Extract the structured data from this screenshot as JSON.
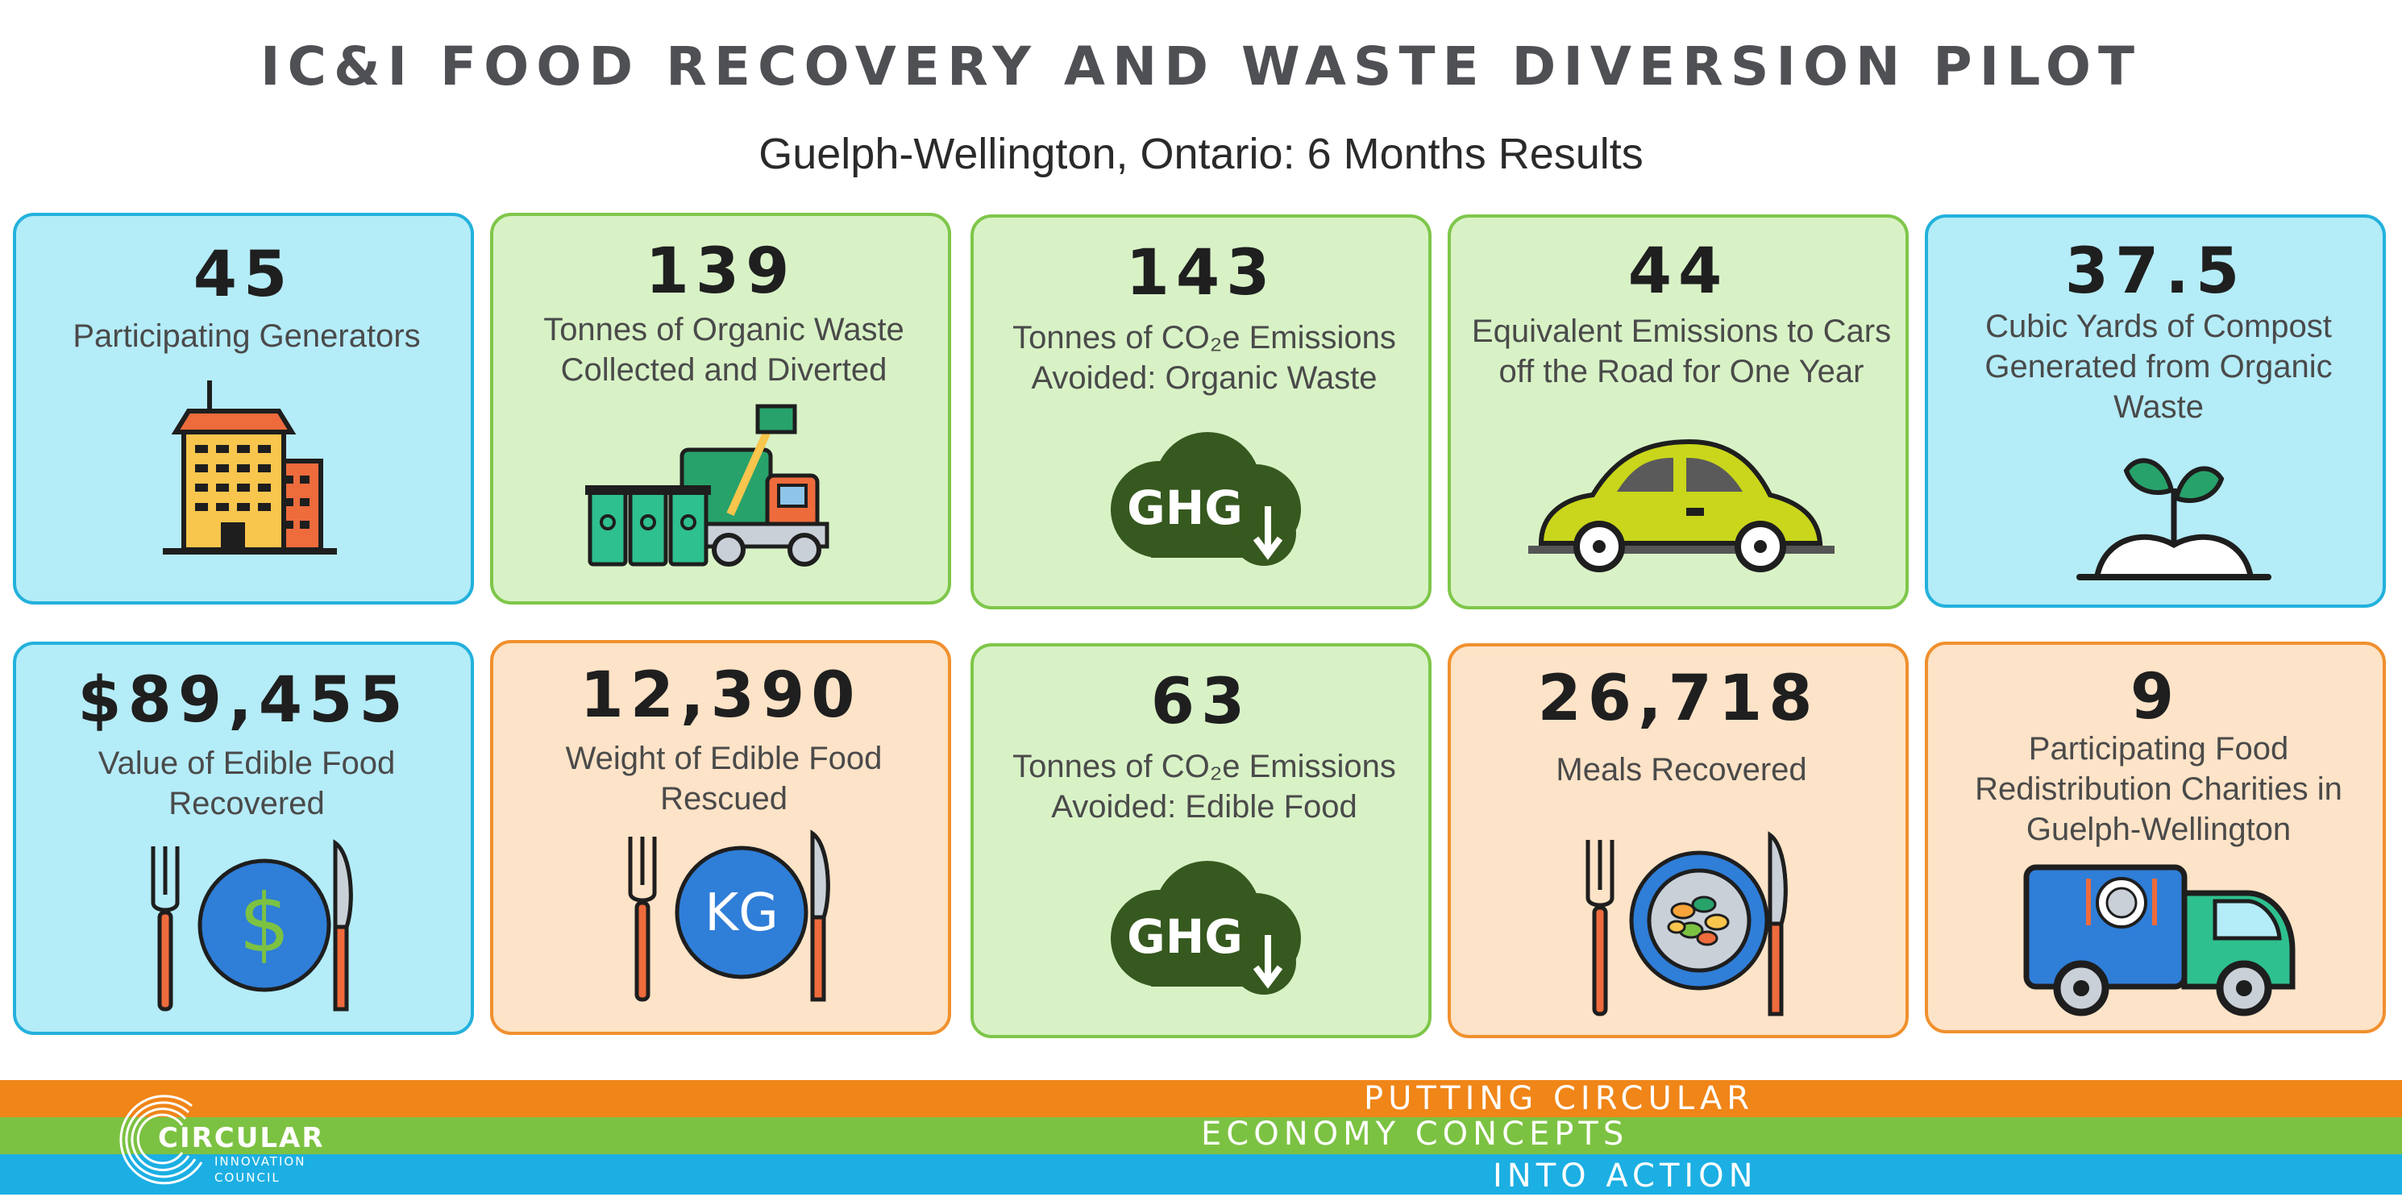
{
  "header": {
    "title": "IC&I FOOD RECOVERY AND WASTE DIVERSION PILOT",
    "subtitle": "Guelph-Wellington, Ontario: 6 Months Results"
  },
  "cards": [
    {
      "value": "45",
      "lines": [
        "Participating Generators"
      ],
      "icon": "building-icon",
      "color": "blue"
    },
    {
      "value": "139",
      "lines": [
        "Tonnes of Organic Waste",
        "Collected and Diverted"
      ],
      "icon": "garbage-truck-icon",
      "color": "green"
    },
    {
      "value": "143",
      "lines": [
        "Tonnes of CO₂e Emissions",
        "Avoided: Organic Waste"
      ],
      "icon": "ghg-cloud-icon",
      "color": "green"
    },
    {
      "value": "44",
      "lines": [
        "Equivalent Emissions to Cars",
        "off the Road for One Year"
      ],
      "icon": "car-icon",
      "color": "green"
    },
    {
      "value": "37.5",
      "lines": [
        "Cubic Yards of Compost",
        "Generated from Organic",
        "Waste"
      ],
      "icon": "sprout-icon",
      "color": "blue"
    },
    {
      "value": "$89,455",
      "lines": [
        "Value of Edible Food",
        "Recovered"
      ],
      "icon": "plate-dollar-icon",
      "color": "blue"
    },
    {
      "value": "12,390",
      "lines": [
        "Weight of Edible Food",
        "Rescued"
      ],
      "icon": "plate-kg-icon",
      "color": "orange"
    },
    {
      "value": "63",
      "lines": [
        "Tonnes of CO₂e Emissions",
        "Avoided: Edible Food"
      ],
      "icon": "ghg-cloud-icon",
      "color": "green"
    },
    {
      "value": "26,718",
      "lines": [
        "Meals Recovered"
      ],
      "icon": "plate-meal-icon",
      "color": "orange"
    },
    {
      "value": "9",
      "lines": [
        "Participating Food",
        "Redistribution Charities in",
        "Guelph-Wellington"
      ],
      "icon": "delivery-truck-icon",
      "color": "orange"
    }
  ],
  "icon_text": {
    "ghg": "GHG",
    "dollar": "$",
    "kg": "KG"
  },
  "footer": {
    "line1": "PUTTING CIRCULAR",
    "line2": "ECONOMY CONCEPTS",
    "line3": "INTO ACTION",
    "logo_main": "CIRCULAR",
    "logo_sub1": "INNOVATION",
    "logo_sub2": "COUNCIL"
  },
  "colors": {
    "blue_card": "#b4ecf8",
    "green_card": "#d8f2c6",
    "orange_card": "#fde3c7",
    "band_orange": "#f08518",
    "band_green": "#7cc242",
    "band_blue": "#1cafe3"
  }
}
